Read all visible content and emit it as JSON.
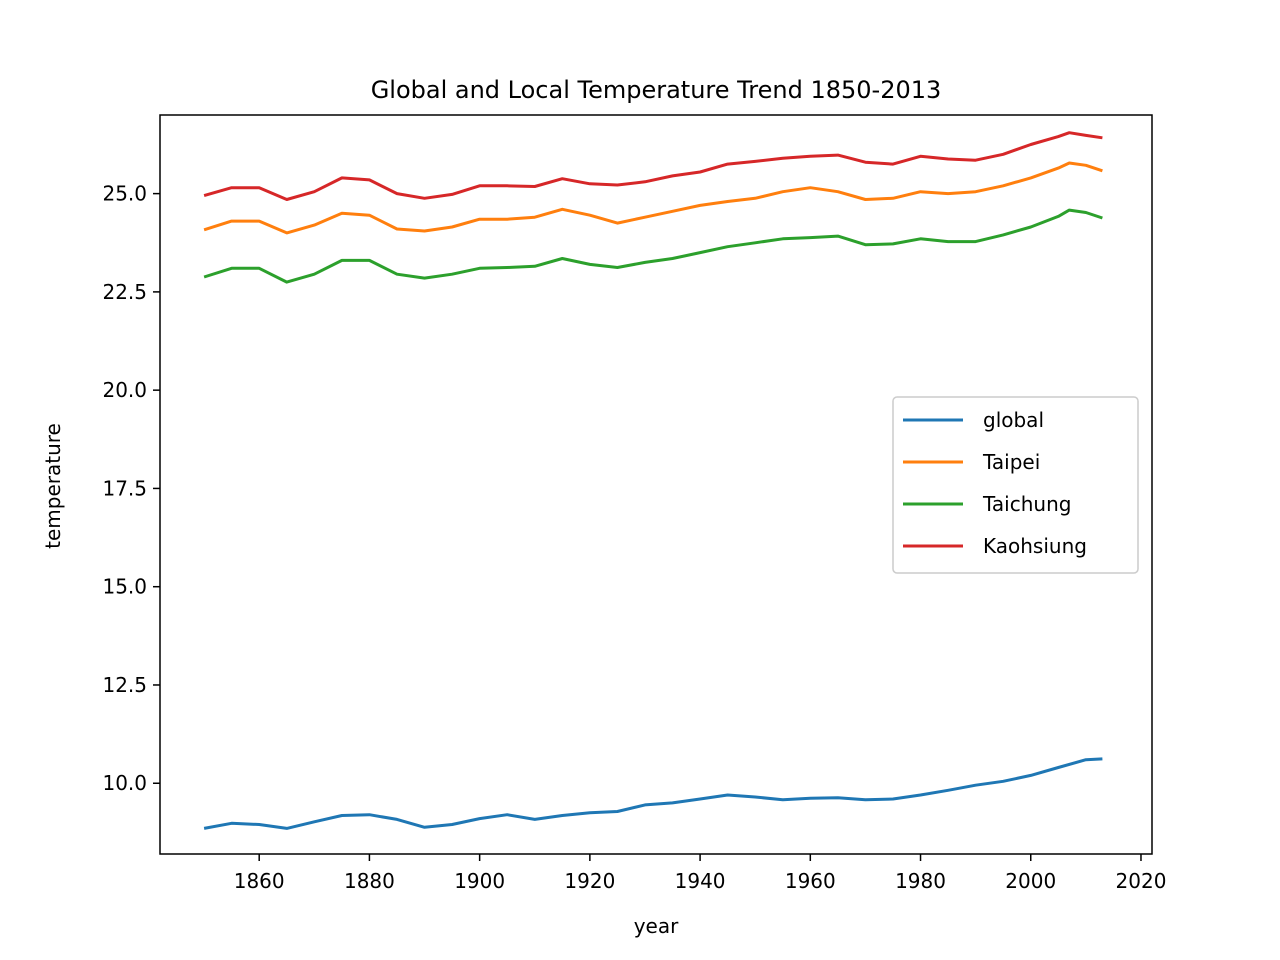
{
  "chart_data": {
    "type": "line",
    "title": "Global and Local Temperature Trend 1850-2013",
    "xlabel": "year",
    "ylabel": "temperature",
    "xlim": [
      1842,
      2022
    ],
    "ylim": [
      8.2,
      27.0
    ],
    "xticks": [
      1860,
      1880,
      1900,
      1920,
      1940,
      1960,
      1980,
      2000,
      2020
    ],
    "yticks": [
      10.0,
      12.5,
      15.0,
      17.5,
      20.0,
      22.5,
      25.0
    ],
    "ytick_labels": [
      "10.0",
      "12.5",
      "15.0",
      "17.5",
      "20.0",
      "22.5",
      "25.0"
    ],
    "legend": "center-right",
    "grid": false,
    "series": [
      {
        "name": "global",
        "color": "#1f77b4",
        "x": [
          1850,
          1855,
          1860,
          1865,
          1870,
          1875,
          1880,
          1885,
          1890,
          1895,
          1900,
          1905,
          1910,
          1915,
          1920,
          1925,
          1930,
          1935,
          1940,
          1945,
          1950,
          1955,
          1960,
          1965,
          1970,
          1975,
          1980,
          1985,
          1990,
          1995,
          2000,
          2005,
          2010,
          2013
        ],
        "y": [
          8.85,
          8.98,
          8.95,
          8.85,
          9.02,
          9.18,
          9.2,
          9.08,
          8.88,
          8.95,
          9.1,
          9.2,
          9.08,
          9.18,
          9.25,
          9.28,
          9.45,
          9.5,
          9.6,
          9.7,
          9.65,
          9.58,
          9.62,
          9.63,
          9.58,
          9.6,
          9.7,
          9.82,
          9.95,
          10.05,
          10.2,
          10.4,
          10.6,
          10.62
        ]
      },
      {
        "name": "Taipei",
        "color": "#ff7f0e",
        "x": [
          1850,
          1855,
          1860,
          1865,
          1870,
          1875,
          1880,
          1885,
          1890,
          1895,
          1900,
          1905,
          1910,
          1915,
          1920,
          1925,
          1930,
          1935,
          1940,
          1945,
          1950,
          1955,
          1960,
          1965,
          1970,
          1975,
          1980,
          1985,
          1990,
          1995,
          2000,
          2005,
          2007,
          2010,
          2013
        ],
        "y": [
          24.08,
          24.3,
          24.3,
          24.0,
          24.2,
          24.5,
          24.45,
          24.1,
          24.05,
          24.15,
          24.35,
          24.35,
          24.4,
          24.6,
          24.45,
          24.25,
          24.4,
          24.55,
          24.7,
          24.8,
          24.88,
          25.05,
          25.15,
          25.05,
          24.85,
          24.88,
          25.05,
          25.0,
          25.05,
          25.2,
          25.4,
          25.65,
          25.78,
          25.72,
          25.58
        ]
      },
      {
        "name": "Taichung",
        "color": "#2ca02c",
        "x": [
          1850,
          1855,
          1860,
          1865,
          1870,
          1875,
          1880,
          1885,
          1890,
          1895,
          1900,
          1905,
          1910,
          1915,
          1920,
          1925,
          1930,
          1935,
          1940,
          1945,
          1950,
          1955,
          1960,
          1965,
          1970,
          1975,
          1980,
          1985,
          1990,
          1995,
          2000,
          2005,
          2007,
          2010,
          2013
        ],
        "y": [
          22.88,
          23.1,
          23.1,
          22.75,
          22.95,
          23.3,
          23.3,
          22.95,
          22.85,
          22.95,
          23.1,
          23.12,
          23.15,
          23.35,
          23.2,
          23.12,
          23.25,
          23.35,
          23.5,
          23.65,
          23.75,
          23.85,
          23.88,
          23.92,
          23.7,
          23.72,
          23.85,
          23.78,
          23.78,
          23.95,
          24.15,
          24.42,
          24.58,
          24.52,
          24.38
        ]
      },
      {
        "name": "Kaohsiung",
        "color": "#d62728",
        "x": [
          1850,
          1855,
          1860,
          1865,
          1870,
          1875,
          1880,
          1885,
          1890,
          1895,
          1900,
          1905,
          1910,
          1915,
          1920,
          1925,
          1930,
          1935,
          1940,
          1945,
          1950,
          1955,
          1960,
          1965,
          1970,
          1975,
          1980,
          1985,
          1990,
          1995,
          2000,
          2005,
          2007,
          2010,
          2013
        ],
        "y": [
          24.95,
          25.15,
          25.15,
          24.85,
          25.05,
          25.4,
          25.35,
          25.0,
          24.88,
          24.98,
          25.2,
          25.2,
          25.18,
          25.38,
          25.25,
          25.22,
          25.3,
          25.45,
          25.55,
          25.75,
          25.82,
          25.9,
          25.95,
          25.98,
          25.8,
          25.75,
          25.95,
          25.88,
          25.85,
          26.0,
          26.25,
          26.45,
          26.55,
          26.48,
          26.42
        ]
      }
    ]
  }
}
